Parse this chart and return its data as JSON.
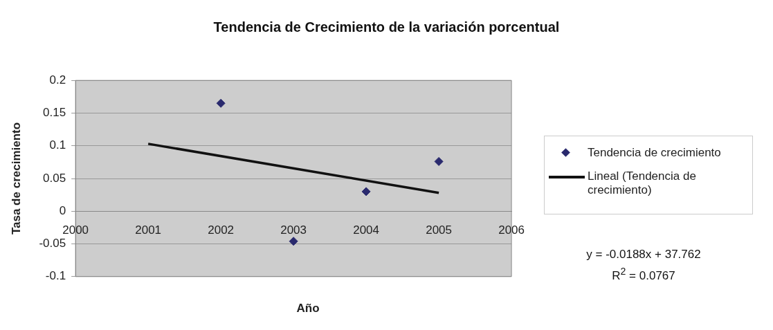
{
  "chart_data": {
    "type": "scatter",
    "title": "Tendencia de Crecimiento de la variación porcentual",
    "xlabel": "Año",
    "ylabel": "Tasa de crecimiento",
    "xlim": [
      2000,
      2006
    ],
    "xticks": [
      2000,
      2001,
      2002,
      2003,
      2004,
      2005,
      2006
    ],
    "ylim": [
      -0.1,
      0.2
    ],
    "yticks": [
      -0.1,
      -0.05,
      0,
      0.05,
      0.1,
      0.15,
      0.2
    ],
    "grid": "y",
    "legend": "right",
    "series": [
      {
        "name": "Tendencia de crecimiento",
        "type": "scatter",
        "marker": "diamond",
        "color": "#2a2a6e",
        "x": [
          2002,
          2003,
          2004,
          2005
        ],
        "values": [
          0.165,
          -0.046,
          0.03,
          0.076
        ]
      },
      {
        "name": "Lineal (Tendencia de crecimiento)",
        "type": "line",
        "marker": "none",
        "line_style": "solid",
        "color": "#111111",
        "x": [
          2001,
          2005
        ],
        "values": [
          0.103,
          0.028
        ]
      }
    ],
    "annotations": [
      "y = -0.0188x + 37.762",
      "R$^{2}$ = 0.0767"
    ]
  }
}
